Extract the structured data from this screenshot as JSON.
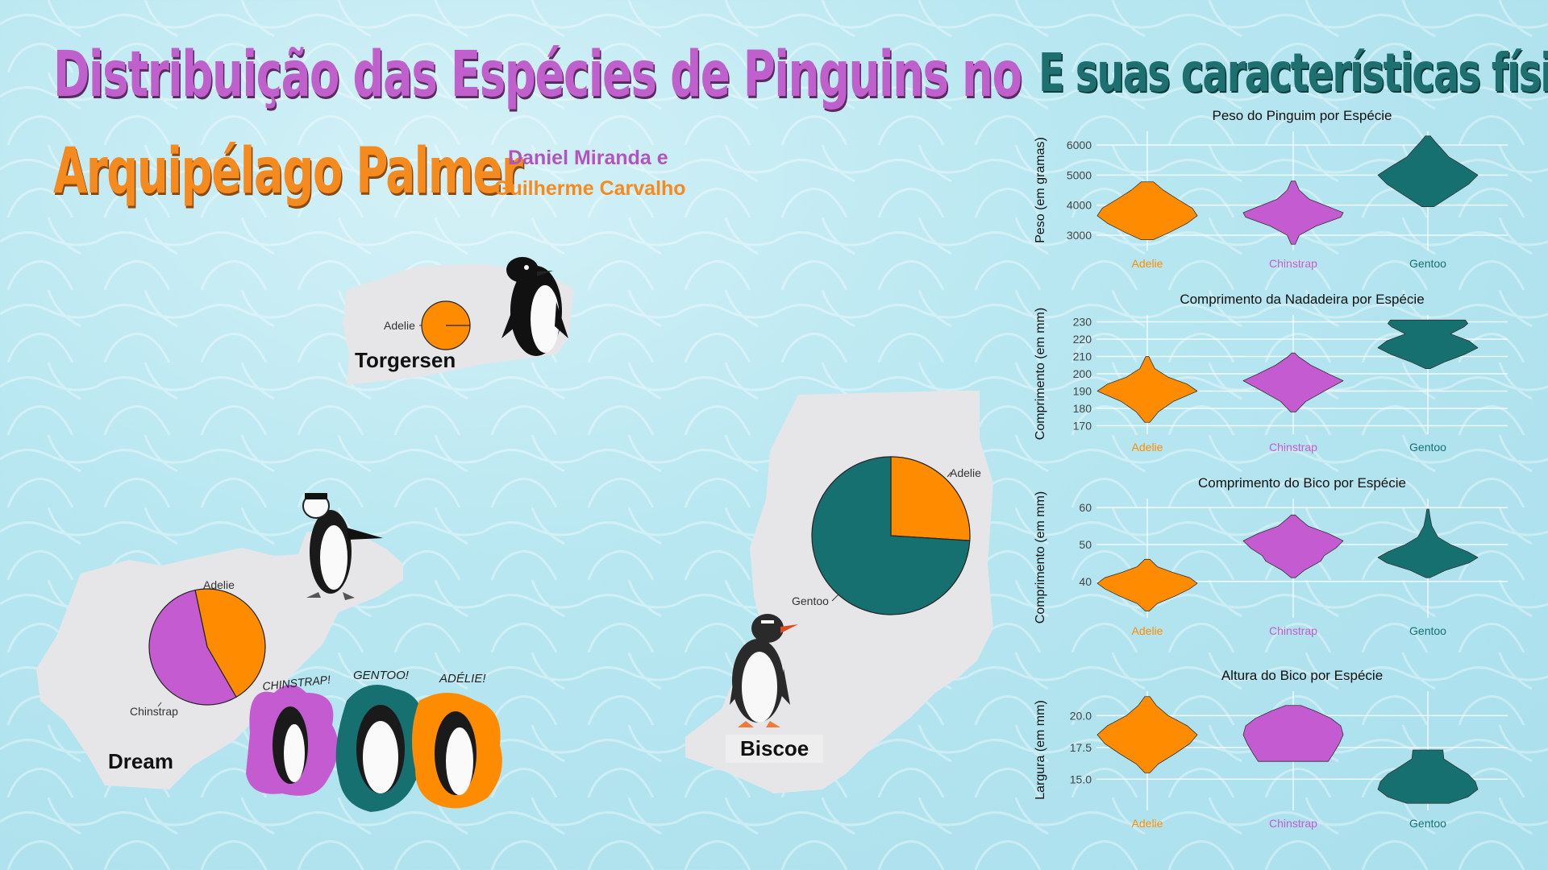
{
  "titles": {
    "main_line1": "Distribuição das Espécies de Pinguins no",
    "main_line2": "Arquipélago Palmer",
    "right": "E suas características físicas",
    "author1": "Daniel Miranda e",
    "author2": "Guilherme Carvalho"
  },
  "colors": {
    "Adelie": "#ff8c00",
    "Chinstrap": "#c55bd1",
    "Gentoo": "#167070",
    "island": "#e6e6e8"
  },
  "islands": {
    "torgersen": {
      "name": "Torgersen",
      "label_adelie": "Adelie"
    },
    "dream": {
      "name": "Dream",
      "label_adelie": "Adelie",
      "label_chinstrap": "Chinstrap"
    },
    "biscoe": {
      "name": "Biscoe",
      "label_adelie": "Adelie",
      "label_gentoo": "Gentoo"
    }
  },
  "stickers": {
    "chinstrap": "CHINSTRAP!",
    "gentoo": "GENTOO!",
    "adelie": "ADÉLIE!"
  },
  "chart_data": [
    {
      "type": "pie",
      "title": "",
      "island": "Torgersen",
      "labels": [
        "Adelie"
      ],
      "values": [
        1.0
      ]
    },
    {
      "type": "pie",
      "title": "",
      "island": "Dream",
      "labels": [
        "Adelie",
        "Chinstrap"
      ],
      "values": [
        0.45,
        0.55
      ]
    },
    {
      "type": "pie",
      "title": "",
      "island": "Biscoe",
      "labels": [
        "Adelie",
        "Gentoo"
      ],
      "values": [
        0.26,
        0.74
      ]
    },
    {
      "type": "violin",
      "title": "Peso do Pinguim por Espécie",
      "ylabel": "Peso (em gramas)",
      "categories": [
        "Adelie",
        "Chinstrap",
        "Gentoo"
      ],
      "yticks": [
        3000,
        4000,
        5000,
        6000
      ],
      "ylim": [
        2600,
        6400
      ],
      "series": [
        {
          "name": "Adelie",
          "min": 2850,
          "max": 4775,
          "profile": [
            [
              2850,
              0.12
            ],
            [
              3100,
              0.45
            ],
            [
              3400,
              0.8
            ],
            [
              3650,
              1.0
            ],
            [
              3900,
              0.9
            ],
            [
              4200,
              0.6
            ],
            [
              4500,
              0.32
            ],
            [
              4775,
              0.12
            ]
          ]
        },
        {
          "name": "Chinstrap",
          "min": 2700,
          "max": 4800,
          "profile": [
            [
              2700,
              0.04
            ],
            [
              3000,
              0.12
            ],
            [
              3300,
              0.45
            ],
            [
              3600,
              0.95
            ],
            [
              3750,
              1.0
            ],
            [
              3950,
              0.7
            ],
            [
              4200,
              0.32
            ],
            [
              4500,
              0.12
            ],
            [
              4800,
              0.04
            ]
          ]
        },
        {
          "name": "Gentoo",
          "min": 3950,
          "max": 6300,
          "profile": [
            [
              3950,
              0.12
            ],
            [
              4300,
              0.45
            ],
            [
              4700,
              0.82
            ],
            [
              5000,
              1.0
            ],
            [
              5300,
              0.72
            ],
            [
              5600,
              0.42
            ],
            [
              5900,
              0.26
            ],
            [
              6100,
              0.15
            ],
            [
              6300,
              0.05
            ]
          ]
        }
      ]
    },
    {
      "type": "violin",
      "title": "Comprimento da Nadadeira por Espécie",
      "ylabel": "Comprimento (em mm)",
      "categories": [
        "Adelie",
        "Chinstrap",
        "Gentoo"
      ],
      "yticks": [
        170,
        180,
        190,
        200,
        210,
        220,
        230
      ],
      "ylim": [
        167,
        233
      ],
      "series": [
        {
          "name": "Adelie",
          "min": 172,
          "max": 210,
          "profile": [
            [
              172,
              0.05
            ],
            [
              178,
              0.22
            ],
            [
              184,
              0.52
            ],
            [
              190,
              1.0
            ],
            [
              194,
              0.8
            ],
            [
              198,
              0.42
            ],
            [
              203,
              0.15
            ],
            [
              207,
              0.08
            ],
            [
              210,
              0.03
            ]
          ]
        },
        {
          "name": "Chinstrap",
          "min": 178,
          "max": 212,
          "profile": [
            [
              178,
              0.05
            ],
            [
              184,
              0.25
            ],
            [
              190,
              0.62
            ],
            [
              196,
              1.0
            ],
            [
              200,
              0.7
            ],
            [
              205,
              0.35
            ],
            [
              210,
              0.1
            ],
            [
              212,
              0.03
            ]
          ]
        },
        {
          "name": "Gentoo",
          "min": 203,
          "max": 231,
          "profile": [
            [
              203,
              0.05
            ],
            [
              207,
              0.35
            ],
            [
              211,
              0.72
            ],
            [
              215,
              1.0
            ],
            [
              219,
              0.82
            ],
            [
              223,
              0.45
            ],
            [
              227,
              0.72
            ],
            [
              229,
              0.8
            ],
            [
              231,
              0.75
            ]
          ]
        }
      ]
    },
    {
      "type": "violin",
      "title": "Comprimento do Bico por Espécie",
      "ylabel": "Comprimento (em mm)",
      "categories": [
        "Adelie",
        "Chinstrap",
        "Gentoo"
      ],
      "yticks": [
        40,
        50,
        60
      ],
      "ylim": [
        31,
        62
      ],
      "series": [
        {
          "name": "Adelie",
          "min": 32,
          "max": 46,
          "profile": [
            [
              32,
              0.04
            ],
            [
              34,
              0.2
            ],
            [
              36,
              0.55
            ],
            [
              38,
              0.85
            ],
            [
              39.5,
              1.0
            ],
            [
              41,
              0.85
            ],
            [
              42.5,
              0.5
            ],
            [
              44,
              0.2
            ],
            [
              46,
              0.05
            ]
          ]
        },
        {
          "name": "Chinstrap",
          "min": 41,
          "max": 58,
          "profile": [
            [
              41,
              0.04
            ],
            [
              43,
              0.22
            ],
            [
              45.5,
              0.55
            ],
            [
              47,
              0.62
            ],
            [
              49,
              0.85
            ],
            [
              51,
              1.0
            ],
            [
              53,
              0.7
            ],
            [
              55,
              0.3
            ],
            [
              57,
              0.12
            ],
            [
              58,
              0.04
            ]
          ]
        },
        {
          "name": "Gentoo",
          "min": 41,
          "max": 59.6,
          "profile": [
            [
              41,
              0.04
            ],
            [
              43,
              0.35
            ],
            [
              45,
              0.82
            ],
            [
              46.5,
              1.0
            ],
            [
              48,
              0.8
            ],
            [
              50,
              0.45
            ],
            [
              52,
              0.2
            ],
            [
              55,
              0.08
            ],
            [
              57,
              0.05
            ],
            [
              59.6,
              0.02
            ]
          ]
        }
      ]
    },
    {
      "type": "violin",
      "title": "Altura do Bico por Espécie",
      "ylabel": "Largura (em mm)",
      "categories": [
        "Adelie",
        "Chinstrap",
        "Gentoo"
      ],
      "yticks": [
        "15.0",
        "17.5",
        "20.0"
      ],
      "ylim": [
        12.8,
        21.8
      ],
      "series": [
        {
          "name": "Adelie",
          "min": 15.5,
          "max": 21.5,
          "profile": [
            [
              15.5,
              0.05
            ],
            [
              16.2,
              0.22
            ],
            [
              17,
              0.55
            ],
            [
              17.8,
              0.85
            ],
            [
              18.5,
              1.0
            ],
            [
              19.2,
              0.8
            ],
            [
              20,
              0.42
            ],
            [
              20.8,
              0.18
            ],
            [
              21.5,
              0.05
            ]
          ]
        },
        {
          "name": "Chinstrap",
          "min": 16.4,
          "max": 20.8,
          "profile": [
            [
              16.4,
              0.7
            ],
            [
              17,
              0.8
            ],
            [
              17.8,
              0.92
            ],
            [
              18.5,
              1.0
            ],
            [
              19.2,
              0.95
            ],
            [
              19.8,
              0.75
            ],
            [
              20.4,
              0.42
            ],
            [
              20.8,
              0.15
            ]
          ]
        },
        {
          "name": "Gentoo",
          "min": 13.1,
          "max": 17.3,
          "profile": [
            [
              13.1,
              0.42
            ],
            [
              13.6,
              0.8
            ],
            [
              14.2,
              1.0
            ],
            [
              14.8,
              0.95
            ],
            [
              15.4,
              0.8
            ],
            [
              16,
              0.55
            ],
            [
              16.6,
              0.32
            ],
            [
              17.3,
              0.3
            ]
          ]
        }
      ]
    }
  ]
}
